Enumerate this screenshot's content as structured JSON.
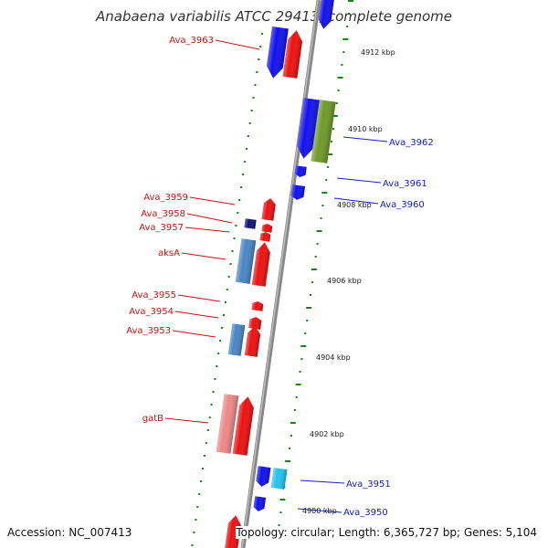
{
  "title": "Anabaena variabilis ATCC 29413, complete genome",
  "footer": {
    "accession": "Accession: NC_007413",
    "topology": "Topology: circular; Length: 6,365,727 bp; Genes: 5,104"
  },
  "colors": {
    "red": "#ee1111",
    "blue": "#1111ee",
    "navy": "#111177",
    "steelblue": "#4a86c4",
    "cyan": "#22c4ee",
    "olive": "#6e9a2a",
    "pink": "#ee8888",
    "backbone": "#888888",
    "tick": "#118811",
    "label_left": "#cc1111",
    "label_right": "#1122bb"
  },
  "kbp_markers": [
    "4912 kbp",
    "4910 kbp",
    "4908 kbp",
    "4906 kbp",
    "4904 kbp",
    "4902 kbp",
    "4900 kbp"
  ],
  "labels_left": [
    "Ava_3963",
    "Ava_3959",
    "Ava_3958",
    "Ava_3957",
    "aksA",
    "Ava_3955",
    "Ava_3954",
    "Ava_3953",
    "gatB"
  ],
  "labels_right": [
    "Ava_3962",
    "Ava_3961",
    "Ava_3960",
    "Ava_3951",
    "Ava_3950"
  ]
}
